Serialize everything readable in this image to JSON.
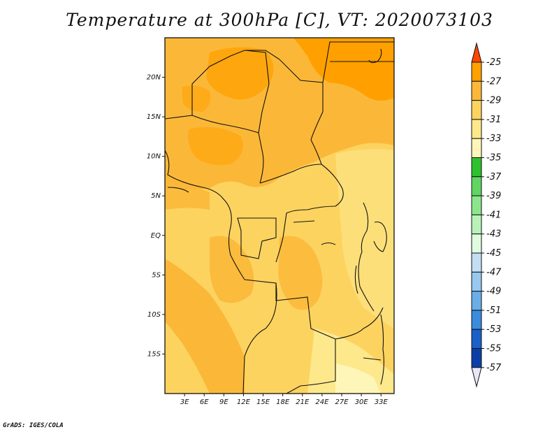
{
  "title": "Temperature at 300hPa [C], VT: 2020073103",
  "credit": "GrADS: IGES/COLA",
  "map": {
    "lon_range": [
      0,
      35
    ],
    "lat_range": [
      -20,
      25
    ],
    "x_ticks": [
      "3E",
      "6E",
      "9E",
      "12E",
      "15E",
      "18E",
      "21E",
      "24E",
      "27E",
      "30E",
      "33E"
    ],
    "x_tick_values": [
      3,
      6,
      9,
      12,
      15,
      18,
      21,
      24,
      27,
      30,
      33
    ],
    "y_ticks": [
      "20N",
      "15N",
      "10N",
      "5N",
      "EQ",
      "5S",
      "10S",
      "15S"
    ],
    "y_tick_values": [
      20,
      15,
      10,
      5,
      0,
      -5,
      -10,
      -15
    ]
  },
  "colorbar": {
    "labels": [
      "-25",
      "-27",
      "-29",
      "-31",
      "-33",
      "-35",
      "-37",
      "-39",
      "-41",
      "-43",
      "-45",
      "-47",
      "-49",
      "-51",
      "-53",
      "-55",
      "-57"
    ],
    "colors": [
      "#ff6a00",
      "#ffa000",
      "#fbb838",
      "#fdd360",
      "#fde88c",
      "#fef6b8",
      "#2fc02f",
      "#61d561",
      "#8be68b",
      "#b8f2b8",
      "#e0fbe0",
      "#c2def5",
      "#98c8f0",
      "#6aaee8",
      "#3a8cdc",
      "#1a60c8",
      "#0b3fa8",
      "#082878",
      "#e8e6f7"
    ],
    "top_color": "#ff4500",
    "bottom_color": "#e8e6f7"
  }
}
